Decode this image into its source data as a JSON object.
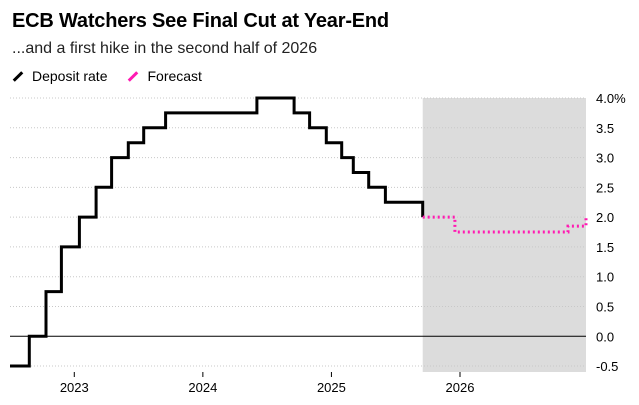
{
  "chart_data": {
    "type": "line",
    "title": "ECB Watchers See Final Cut at Year-End",
    "subtitle": "...and a first hike in the second half of 2026",
    "xlabel": "",
    "ylabel": "",
    "ylim": [
      -0.6,
      4.0
    ],
    "xlim": [
      2022.5,
      2026.98
    ],
    "y_ticks": [
      -0.5,
      0.0,
      0.5,
      1.0,
      1.5,
      2.0,
      2.5,
      3.0,
      3.5,
      4.0
    ],
    "y_tick_labels": [
      "-0.5",
      "0.0",
      "0.5",
      "1.0",
      "1.5",
      "2.0",
      "2.5",
      "3.0",
      "3.5",
      "4.0%"
    ],
    "x_ticks": [
      2023,
      2024,
      2025,
      2026
    ],
    "x_tick_labels": [
      "2023",
      "2024",
      "2025",
      "2026"
    ],
    "forecast_shaded_region": [
      2025.71,
      2026.98
    ],
    "grid": true,
    "legend_placement": "top-left",
    "series": [
      {
        "name": "Deposit rate",
        "color": "#000000",
        "style": "solid",
        "x": [
          2022.5,
          2022.65,
          2022.78,
          2022.9,
          2023.04,
          2023.17,
          2023.29,
          2023.42,
          2023.54,
          2023.71,
          2024.42,
          2024.71,
          2024.83,
          2024.96,
          2025.08,
          2025.17,
          2025.29,
          2025.42,
          2025.71
        ],
        "y": [
          -0.5,
          0.0,
          0.75,
          1.5,
          2.0,
          2.5,
          3.0,
          3.25,
          3.5,
          3.75,
          4.0,
          3.75,
          3.5,
          3.25,
          3.0,
          2.75,
          2.5,
          2.25,
          2.0
        ]
      },
      {
        "name": "Forecast",
        "color": "#ff1ab2",
        "style": "dotted",
        "x": [
          2025.71,
          2025.96,
          2026.71,
          2026.84,
          2026.98
        ],
        "y": [
          2.0,
          1.75,
          1.75,
          1.85,
          2.0
        ]
      }
    ]
  },
  "legend": {
    "deposit_label": "Deposit rate",
    "forecast_label": "Forecast"
  },
  "colors": {
    "shade": "#dcdcdc",
    "grid": "#c8c8c8",
    "zero_line": "#000000",
    "deposit": "#000000",
    "forecast": "#ff1ab2"
  }
}
